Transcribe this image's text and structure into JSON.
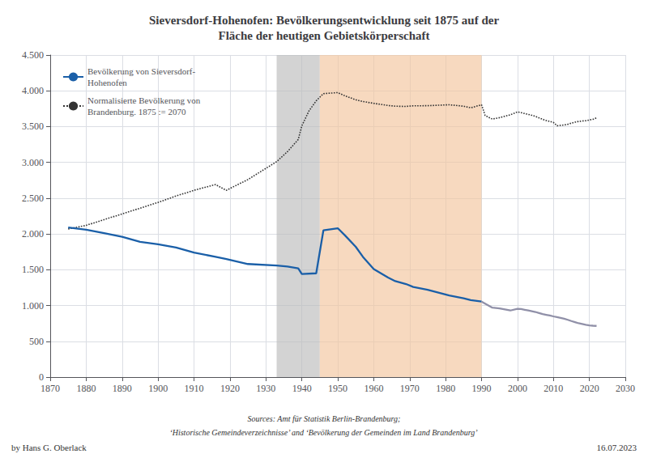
{
  "chart_data": {
    "type": "line",
    "title": "Sieversdorf-Hohenofen: Bevölkerungsentwicklung seit 1875 auf der\nFläche der heutigen Gebietskörperschaft",
    "xlim": [
      1870,
      2030
    ],
    "xticks": [
      1870,
      1880,
      1890,
      1900,
      1910,
      1920,
      1930,
      1940,
      1950,
      1960,
      1970,
      1980,
      1990,
      2000,
      2010,
      2020,
      2030
    ],
    "ylim": [
      0,
      4500
    ],
    "yticks": [
      0,
      500,
      {
        "value": 1000,
        "label": "1.000"
      },
      {
        "value": 1500,
        "label": "1.500"
      },
      {
        "value": 2000,
        "label": "2.000"
      },
      {
        "value": 2500,
        "label": "2.500"
      },
      {
        "value": 3000,
        "label": "3.000"
      },
      {
        "value": 3500,
        "label": "3.500"
      },
      {
        "value": 4000,
        "label": "4.000"
      },
      {
        "value": 4500,
        "label": "4.500"
      }
    ],
    "grid": true,
    "legend": "upper left",
    "spans": [
      {
        "x0": 1933,
        "x1": 1945,
        "color": "#bbbbbb"
      },
      {
        "x0": 1945,
        "x1": 1990,
        "color": "#f2c49c"
      }
    ],
    "series": [
      {
        "name": "Bevölkerung von Sieversdorf-\nHohenofen",
        "color": "#1a5fa8",
        "line_style": "solid",
        "x": [
          1875,
          1880,
          1885,
          1890,
          1895,
          1900,
          1905,
          1910,
          1916,
          1919,
          1925,
          1933,
          1936,
          1939,
          1940,
          1944,
          1946,
          1950,
          1952,
          1955,
          1957,
          1960,
          1964,
          1966,
          1969,
          1971,
          1975,
          1981,
          1985,
          1987,
          1990
        ],
        "values": [
          2090,
          2060,
          2010,
          1960,
          1890,
          1855,
          1810,
          1740,
          1680,
          1650,
          1580,
          1560,
          1545,
          1520,
          1440,
          1450,
          2050,
          2080,
          1980,
          1820,
          1680,
          1510,
          1390,
          1340,
          1300,
          1260,
          1220,
          1140,
          1100,
          1075,
          1055
        ]
      },
      {
        "color": "#9090a8",
        "line_style": "solid",
        "x": [
          1990,
          1993,
          1995,
          1998,
          2000,
          2001,
          2002,
          2003,
          2004,
          2005,
          2006,
          2007,
          2008,
          2009,
          2010,
          2011,
          2012,
          2013,
          2014,
          2015,
          2016,
          2017,
          2018,
          2019,
          2020,
          2021,
          2022
        ],
        "values": [
          1055,
          970,
          960,
          930,
          955,
          950,
          940,
          930,
          920,
          910,
          895,
          880,
          870,
          860,
          848,
          837,
          826,
          815,
          800,
          783,
          768,
          752,
          742,
          732,
          723,
          718,
          715
        ]
      },
      {
        "name": "Normalisierte Bevölkerung von\nBrandenburg. 1875 := 2070",
        "color": "#333333",
        "line_style": "dotted",
        "x": [
          1875,
          1880,
          1885,
          1890,
          1895,
          1900,
          1905,
          1910,
          1916,
          1919,
          1925,
          1933,
          1936,
          1939,
          1940,
          1942,
          1944,
          1946,
          1950,
          1952,
          1955,
          1957,
          1960,
          1964,
          1966,
          1969,
          1971,
          1975,
          1981,
          1985,
          1987,
          1990,
          1991,
          1993,
          1995,
          1998,
          2000,
          2001,
          2002,
          2003,
          2004,
          2005,
          2006,
          2007,
          2008,
          2009,
          2010,
          2011,
          2012,
          2013,
          2014,
          2015,
          2016,
          2017,
          2018,
          2019,
          2020,
          2021,
          2022
        ],
        "values": [
          2070,
          2120,
          2200,
          2280,
          2360,
          2440,
          2530,
          2610,
          2690,
          2610,
          2760,
          3010,
          3150,
          3320,
          3510,
          3720,
          3860,
          3960,
          3975,
          3930,
          3875,
          3850,
          3825,
          3795,
          3785,
          3782,
          3790,
          3792,
          3805,
          3785,
          3762,
          3805,
          3655,
          3605,
          3625,
          3665,
          3705,
          3695,
          3682,
          3670,
          3658,
          3642,
          3622,
          3602,
          3585,
          3572,
          3558,
          3512,
          3518,
          3522,
          3532,
          3548,
          3562,
          3572,
          3578,
          3582,
          3592,
          3602,
          3622
        ]
      }
    ],
    "annotations": [
      "Sources: Amt für Statistik Berlin-Brandenburg;",
      "‘Historische Gemeindeverzeichnisse’ and ‘Bevölkerung der Gemeinden im Land Brandenburg’",
      "by Hans G. Oberlack",
      "16.07.2023"
    ]
  }
}
